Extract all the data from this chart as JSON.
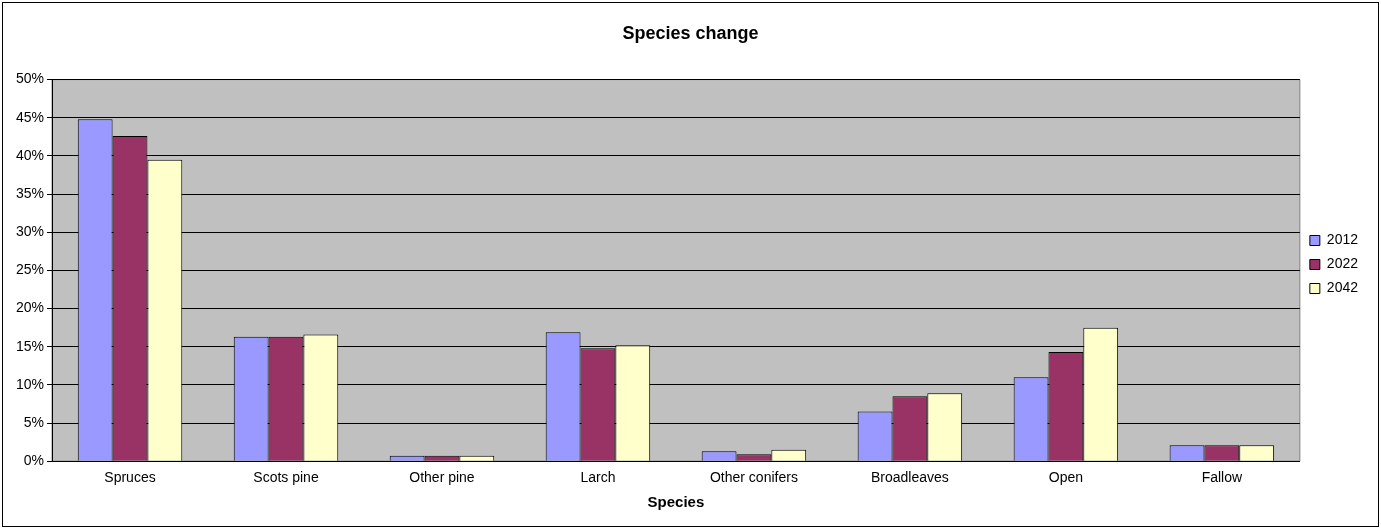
{
  "chart_data": {
    "type": "bar",
    "title": "Species change",
    "xlabel": "Species",
    "categories": [
      "Spruces",
      "Scots pine",
      "Other pine",
      "Larch",
      "Other conifers",
      "Broadleaves",
      "Open",
      "Fallow"
    ],
    "series": [
      {
        "name": "2012",
        "color": "#9999ff",
        "values": [
          44.8,
          16.3,
          0.7,
          16.9,
          1.3,
          6.5,
          11.0,
          2.1
        ]
      },
      {
        "name": "2022",
        "color": "#993366",
        "values": [
          42.6,
          16.3,
          0.7,
          14.8,
          0.9,
          8.5,
          14.3,
          2.1
        ]
      },
      {
        "name": "2042",
        "color": "#ffffcc",
        "values": [
          39.5,
          16.6,
          0.7,
          15.2,
          1.5,
          8.9,
          17.5,
          2.1
        ]
      }
    ],
    "ylim": [
      0,
      50
    ],
    "yticks": [
      {
        "value": 0,
        "label": "0%"
      },
      {
        "value": 5,
        "label": "5%"
      },
      {
        "value": 10,
        "label": "10%"
      },
      {
        "value": 15,
        "label": "15%"
      },
      {
        "value": 20,
        "label": "20%"
      },
      {
        "value": 25,
        "label": "25%"
      },
      {
        "value": 30,
        "label": "30%"
      },
      {
        "value": 35,
        "label": "35%"
      },
      {
        "value": 40,
        "label": "40%"
      },
      {
        "value": 45,
        "label": "45%"
      },
      {
        "value": 50,
        "label": "50%"
      }
    ],
    "grid": "y",
    "legend": "right"
  }
}
